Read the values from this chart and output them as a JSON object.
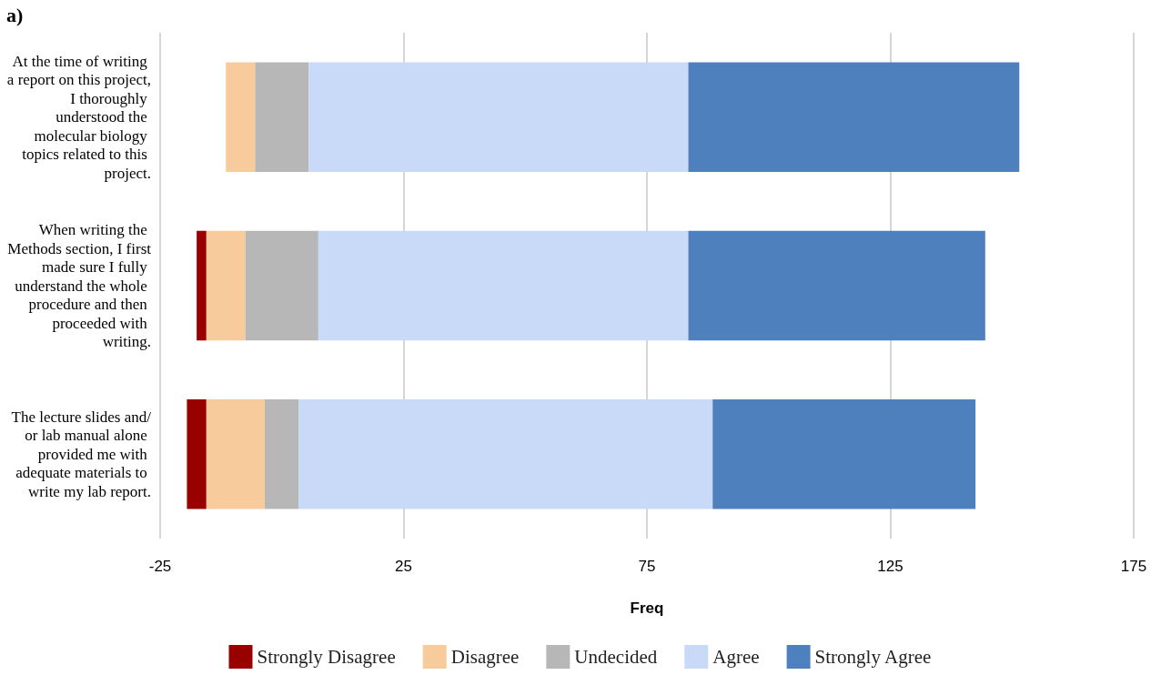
{
  "chart_data": {
    "type": "bar",
    "orientation": "horizontal",
    "title": "a)",
    "xlabel": "Freq",
    "categories": [
      "At the time of writing a report on this project, I thoroughly understood the molecular biology topics related to this project.",
      "When writing the Methods section, I first made sure I fully understand the whole procedure and then proceeded with writing.",
      "The lecture slides and/or lab manual alone provided me with adequate materials to write my lab report."
    ],
    "series": [
      {
        "name": "Strongly Disagree",
        "color": "#990000",
        "values": [
          null,
          2,
          4
        ],
        "base": [
          null,
          -17.5,
          -19.5
        ]
      },
      {
        "name": "Disagree",
        "color": "#f8cb9c",
        "values": [
          6,
          8,
          12
        ],
        "base": [
          -11.5,
          -15.5,
          -15.5
        ]
      },
      {
        "name": "Undecided",
        "color": "#b7b7b7",
        "values": [
          11,
          15,
          7
        ],
        "base": [
          -5.5,
          -7.5,
          -3.5
        ]
      },
      {
        "name": "Agree",
        "color": "#c9daf8",
        "values": [
          78,
          76,
          85
        ],
        "base": [
          5.5,
          7.5,
          3.5
        ]
      },
      {
        "name": "Strongly Agree",
        "color": "#4e80bd",
        "values": [
          68,
          61,
          54
        ],
        "base": [
          83.5,
          83.5,
          88.5
        ]
      }
    ],
    "xlim": [
      -25,
      175
    ],
    "xticks": [
      -25,
      25,
      75,
      125,
      175
    ],
    "grid": "x",
    "legend": "bottom"
  }
}
